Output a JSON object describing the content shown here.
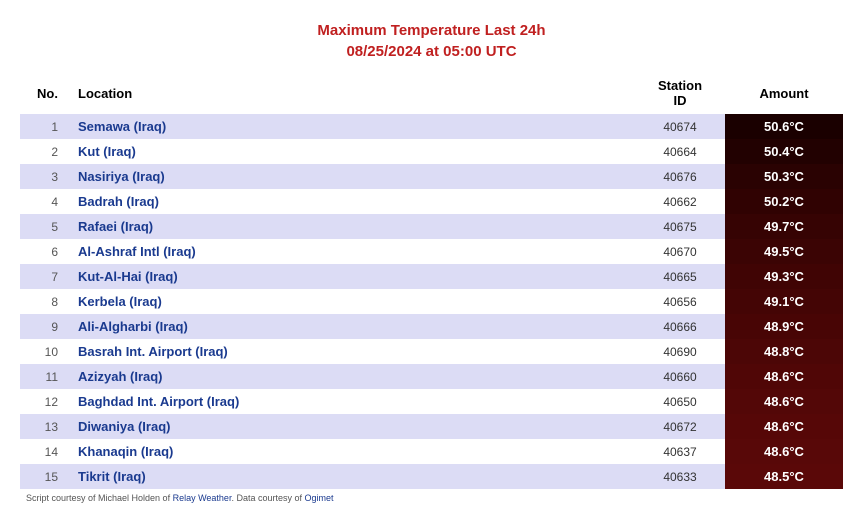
{
  "title_line1": "Maximum Temperature Last 24h",
  "title_line2": "08/25/2024 at 05:00 UTC",
  "title_color": "#c02020",
  "columns": {
    "no": "No.",
    "location": "Location",
    "station": "Station ID",
    "amount": "Amount"
  },
  "row_colors": {
    "odd_bg": "#dcdcf5",
    "even_bg": "#ffffff",
    "location_text": "#1a3a8f",
    "amount_text": "#ffffff"
  },
  "amount_bg_gradient": {
    "top": "#1a0000",
    "bottom": "#5a0808"
  },
  "rows": [
    {
      "no": "1",
      "location": "Semawa (Iraq)",
      "station": "40674",
      "amount": "50.6°C",
      "amount_bg": "#1a0000"
    },
    {
      "no": "2",
      "location": "Kut (Iraq)",
      "station": "40664",
      "amount": "50.4°C",
      "amount_bg": "#220101"
    },
    {
      "no": "3",
      "location": "Nasiriya (Iraq)",
      "station": "40676",
      "amount": "50.3°C",
      "amount_bg": "#2a0202"
    },
    {
      "no": "4",
      "location": "Badrah (Iraq)",
      "station": "40662",
      "amount": "50.2°C",
      "amount_bg": "#300202"
    },
    {
      "no": "5",
      "location": "Rafaei (Iraq)",
      "station": "40675",
      "amount": "49.7°C",
      "amount_bg": "#360303"
    },
    {
      "no": "6",
      "location": "Al-Ashraf Intl (Iraq)",
      "station": "40670",
      "amount": "49.5°C",
      "amount_bg": "#3b0404"
    },
    {
      "no": "7",
      "location": "Kut-Al-Hai (Iraq)",
      "station": "40665",
      "amount": "49.3°C",
      "amount_bg": "#400404"
    },
    {
      "no": "8",
      "location": "Kerbela (Iraq)",
      "station": "40656",
      "amount": "49.1°C",
      "amount_bg": "#440505"
    },
    {
      "no": "9",
      "location": "Ali-Algharbi (Iraq)",
      "station": "40666",
      "amount": "48.9°C",
      "amount_bg": "#480505"
    },
    {
      "no": "10",
      "location": "Basrah Int. Airport (Iraq)",
      "station": "40690",
      "amount": "48.8°C",
      "amount_bg": "#4c0606"
    },
    {
      "no": "11",
      "location": "Azizyah (Iraq)",
      "station": "40660",
      "amount": "48.6°C",
      "amount_bg": "#500606"
    },
    {
      "no": "12",
      "location": "Baghdad Int. Airport (Iraq)",
      "station": "40650",
      "amount": "48.6°C",
      "amount_bg": "#530707"
    },
    {
      "no": "13",
      "location": "Diwaniya (Iraq)",
      "station": "40672",
      "amount": "48.6°C",
      "amount_bg": "#560707"
    },
    {
      "no": "14",
      "location": "Khanaqin (Iraq)",
      "station": "40637",
      "amount": "48.6°C",
      "amount_bg": "#580808"
    },
    {
      "no": "15",
      "location": "Tikrit (Iraq)",
      "station": "40633",
      "amount": "48.5°C",
      "amount_bg": "#5a0808"
    }
  ],
  "footer": {
    "prefix": "Script courtesy of Michael Holden of ",
    "link1": "Relay Weather",
    "mid": ". Data courtesy of ",
    "link2": "Ogimet"
  }
}
